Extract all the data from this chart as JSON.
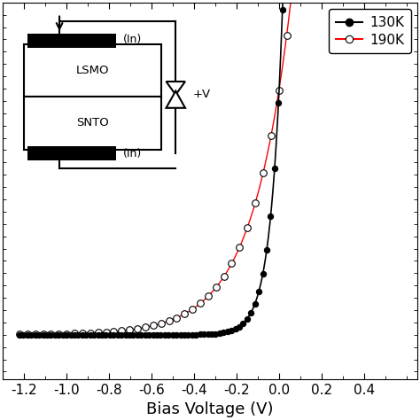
{
  "xlabel": "Bias Voltage (V)",
  "xlim": [
    -1.3,
    0.65
  ],
  "xticks": [
    -1.2,
    -1.0,
    -0.8,
    -0.6,
    -0.4,
    -0.2,
    0.0,
    0.2,
    0.4
  ],
  "xtick_labels": [
    "-1.2",
    "-1.0",
    "-0.8",
    "-0.6",
    "-0.4",
    "-0.2",
    "0.0",
    "0.2",
    "0.4"
  ],
  "legend_130K": "130K",
  "legend_190K": "190K",
  "bg_color": "#ffffff",
  "tick_label_size": 11,
  "xlabel_size": 13,
  "Vt_130": 0.055,
  "Vt_190": 0.18,
  "n_pts_130": 500,
  "n_pts_190": 300,
  "marker_step_130": 5,
  "marker_step_190": 6
}
